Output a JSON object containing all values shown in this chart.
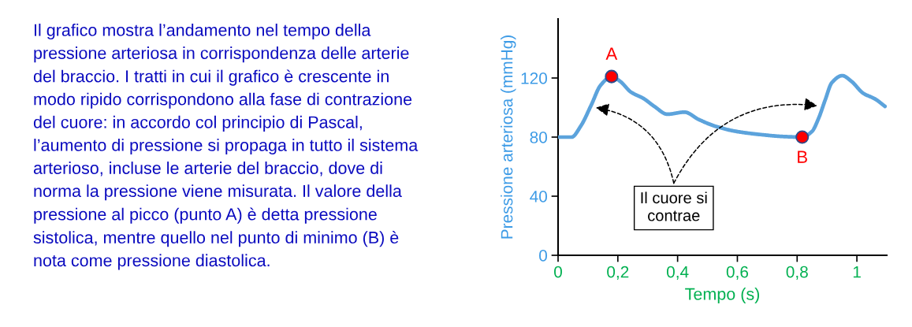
{
  "chart_data": {
    "type": "line",
    "xlabel": "Tempo (s)",
    "ylabel": "Pressione arteriosa (mmHg)",
    "xlim": [
      0,
      1.1
    ],
    "ylim": [
      0,
      160
    ],
    "xticks": [
      0,
      {
        "value": 0.2,
        "label": "0,2"
      },
      {
        "value": 0.4,
        "label": "0,4"
      },
      {
        "value": 0.6,
        "label": "0,6"
      },
      {
        "value": 0.8,
        "label": "0,8"
      },
      1
    ],
    "yticks": [
      0,
      40,
      80,
      120
    ],
    "series": [
      {
        "color": "#5ca3dc",
        "marker": "none",
        "x": [
          0,
          0.045,
          0.076,
          0.111,
          0.142,
          0.179,
          0.208,
          0.243,
          0.287,
          0.322,
          0.366,
          0.423,
          0.471,
          0.524,
          0.595,
          0.683,
          0.753,
          0.817,
          0.85,
          0.872,
          0.894,
          0.916,
          0.951,
          0.982,
          1.021,
          1.061,
          1.094
        ],
        "values": [
          80,
          80,
          87.5,
          101.7,
          115,
          121,
          117.7,
          110.6,
          106,
          100.8,
          95.5,
          96.9,
          91.9,
          87.5,
          83.9,
          81.6,
          80.4,
          80,
          83.9,
          92.8,
          105.2,
          116.8,
          121.6,
          117.7,
          109.7,
          105.8,
          100.8
        ]
      },
      {
        "type": "scatter",
        "color": "#ff0000",
        "marker": "circle",
        "x": [
          0.179,
          0.817
        ],
        "values": [
          121,
          80
        ]
      }
    ],
    "annotations": [
      "Il grafico mostra l’andamento nel tempo della pressione arteriosa in corrispondenza delle arterie del braccio. I tratti in cui il grafico è crescente in modo ripido corrispondono alla fase di contrazione del cuore: in accordo col principio di Pascal, l’aumento di pressione si propaga in tutto il sistema arterioso, incluse le arterie del braccio, dove di norma la pressione viene misurata. Il valore della pressione al picco (punto A) è detta pressione sistolica, mentre quello nel punto di minimo (B) è nota come pressione diastolica.",
      {
        "text": "A",
        "x": 0.179,
        "y": 121
      },
      {
        "text": "B",
        "x": 0.817,
        "y": 80
      },
      "Il cuore si contrae"
    ]
  }
}
